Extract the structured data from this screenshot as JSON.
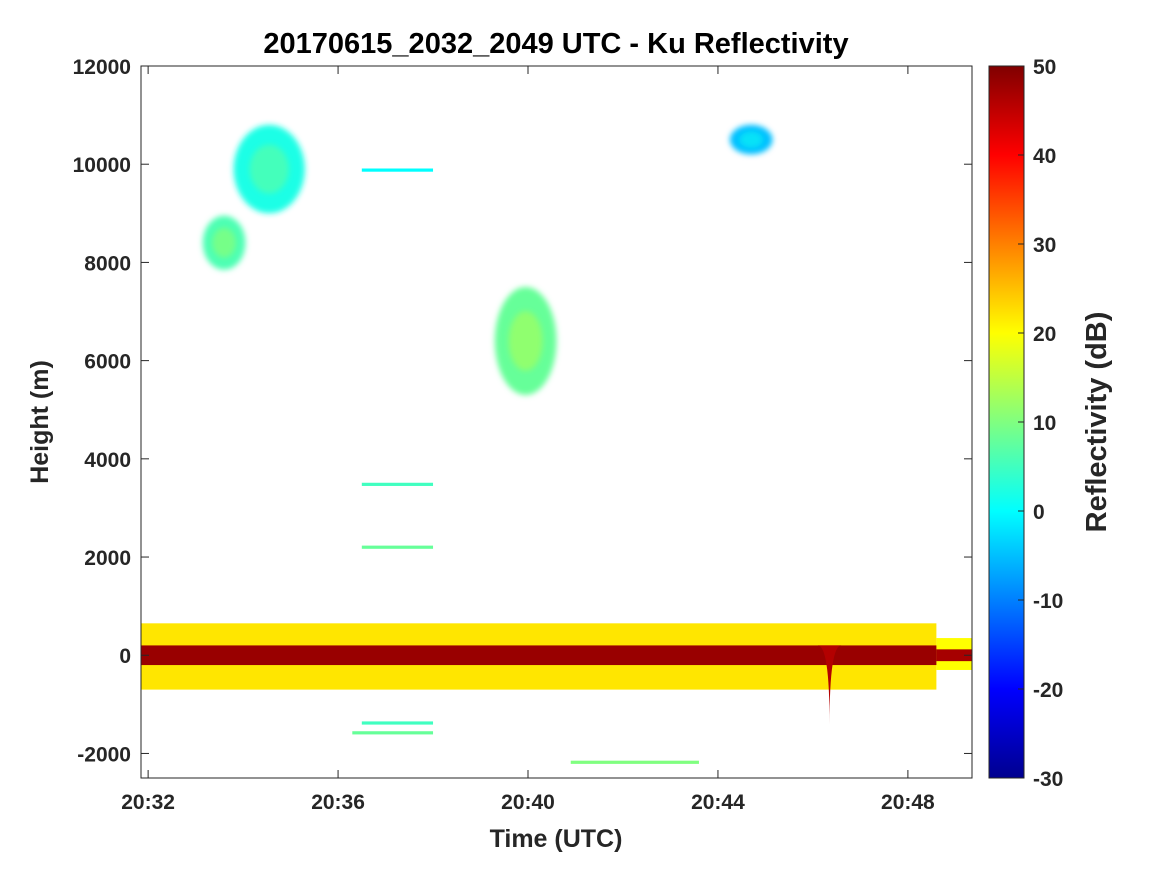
{
  "chart_data": {
    "type": "heatmap",
    "title": "20170615_2032_2049 UTC - Ku Reflectivity",
    "xlabel": "Time (UTC)",
    "ylabel": "Height (m)",
    "colorbar_label": "Reflectivity (dB)",
    "x_unit": "minutes after 20:00 UTC",
    "xlim": [
      31.85,
      49.35
    ],
    "ylim": [
      -2500,
      12000
    ],
    "clim": [
      -30,
      50
    ],
    "grid": false,
    "x_ticks": [
      {
        "value": 32,
        "label": "20:32"
      },
      {
        "value": 36,
        "label": "20:36"
      },
      {
        "value": 40,
        "label": "20:40"
      },
      {
        "value": 44,
        "label": "20:44"
      },
      {
        "value": 48,
        "label": "20:48"
      }
    ],
    "y_ticks": [
      {
        "value": 12000,
        "label": "12000"
      },
      {
        "value": 10000,
        "label": "10000"
      },
      {
        "value": 8000,
        "label": "8000"
      },
      {
        "value": 6000,
        "label": "6000"
      },
      {
        "value": 4000,
        "label": "4000"
      },
      {
        "value": 2000,
        "label": "2000"
      },
      {
        "value": 0,
        "label": "0"
      },
      {
        "value": -2000,
        "label": "-2000"
      }
    ],
    "colorbar_ticks": [
      {
        "value": 50,
        "label": "50"
      },
      {
        "value": 40,
        "label": "40"
      },
      {
        "value": 30,
        "label": "30"
      },
      {
        "value": 20,
        "label": "20"
      },
      {
        "value": 10,
        "label": "10"
      },
      {
        "value": 0,
        "label": "0"
      },
      {
        "value": -10,
        "label": "-10"
      },
      {
        "value": -20,
        "label": "-20"
      },
      {
        "value": -30,
        "label": "-30"
      }
    ],
    "colormap": [
      "#00008f",
      "#0000ff",
      "#0080ff",
      "#00ffff",
      "#80ff80",
      "#ffff00",
      "#ff8000",
      "#ff0000",
      "#800000"
    ],
    "features": [
      {
        "kind": "surface_core",
        "t_start": 31.85,
        "t_end": 48.6,
        "h_min": -200,
        "h_max": 200,
        "dbz": 48
      },
      {
        "kind": "surface_core",
        "t_start": 48.6,
        "t_end": 49.35,
        "h_min": -120,
        "h_max": 120,
        "dbz": 47
      },
      {
        "kind": "surface_band",
        "t_start": 31.85,
        "t_end": 48.6,
        "h_min": -700,
        "h_max": 650,
        "dbz": 22
      },
      {
        "kind": "surface_band",
        "t_start": 48.6,
        "t_end": 49.35,
        "h_min": -300,
        "h_max": 350,
        "dbz": 20
      },
      {
        "kind": "surface_dip",
        "t": 46.35,
        "h_min": -1400,
        "dbz": 46
      },
      {
        "kind": "cloud",
        "t_center": 34.55,
        "h_center": 9900,
        "t_halfwidth": 0.75,
        "h_halfwidth": 900,
        "dbz": 2
      },
      {
        "kind": "cloud",
        "t_center": 33.6,
        "h_center": 8400,
        "t_halfwidth": 0.45,
        "h_halfwidth": 550,
        "dbz": 6
      },
      {
        "kind": "cloud",
        "t_center": 39.95,
        "h_center": 6400,
        "t_halfwidth": 0.65,
        "h_halfwidth": 1100,
        "dbz": 8
      },
      {
        "kind": "cloud",
        "t_center": 44.7,
        "h_center": 10500,
        "t_halfwidth": 0.45,
        "h_halfwidth": 300,
        "dbz": -5
      },
      {
        "kind": "streak",
        "t_start": 36.5,
        "t_end": 38.0,
        "h": 9880,
        "dbz": 0
      },
      {
        "kind": "streak",
        "t_start": 36.5,
        "t_end": 38.0,
        "h": 3480,
        "dbz": 5
      },
      {
        "kind": "streak",
        "t_start": 36.5,
        "t_end": 38.0,
        "h": 2200,
        "dbz": 8
      },
      {
        "kind": "streak",
        "t_start": 36.5,
        "t_end": 38.0,
        "h": -1380,
        "dbz": 5
      },
      {
        "kind": "streak",
        "t_start": 36.3,
        "t_end": 38.0,
        "h": -1580,
        "dbz": 8
      },
      {
        "kind": "streak",
        "t_start": 40.9,
        "t_end": 43.6,
        "h": -2180,
        "dbz": 10
      }
    ]
  }
}
